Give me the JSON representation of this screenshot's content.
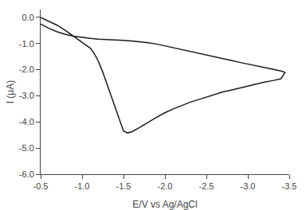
{
  "chart_data": {
    "type": "line",
    "xlabel": "E/V vs Ag/AgCl",
    "ylabel": "I (μA)",
    "xlim": [
      -0.5,
      -3.5
    ],
    "ylim": [
      -6.0,
      0.3
    ],
    "xticks": [
      -0.5,
      {
        "value": -1.0,
        "label": "-1.0"
      },
      -1.5,
      {
        "value": -2.0,
        "label": "-2.0"
      },
      -2.5,
      {
        "value": -3.0,
        "label": "-3.0"
      },
      -3.5
    ],
    "yticks": [
      {
        "value": 0.0,
        "label": "0.0"
      },
      {
        "value": -1.0,
        "label": "-1.0"
      },
      {
        "value": -2.0,
        "label": "-2.0"
      },
      {
        "value": -3.0,
        "label": "-3.0"
      },
      {
        "value": -4.0,
        "label": "-4.0"
      },
      {
        "value": -5.0,
        "label": "-5.0"
      },
      {
        "value": -6.0,
        "label": "-6.0"
      }
    ],
    "grid": false,
    "series": [
      {
        "color": "#1a1a1a",
        "x": [
          -0.5,
          -0.6,
          -0.7,
          -0.8,
          -0.9,
          -1.0,
          -1.05,
          -1.1,
          -1.15,
          -1.2,
          -1.25,
          -1.3,
          -1.35,
          -1.4,
          -1.45,
          -1.5,
          -1.55,
          -1.6,
          -1.7,
          -1.8,
          -1.9,
          -2.0,
          -2.1,
          -2.2,
          -2.3,
          -2.4,
          -2.5,
          -2.6,
          -2.7,
          -2.8,
          -2.9,
          -3.0,
          -3.1,
          -3.2,
          -3.3,
          -3.4,
          -3.45
        ],
        "values": [
          0.0,
          -0.15,
          -0.3,
          -0.5,
          -0.72,
          -0.95,
          -1.05,
          -1.18,
          -1.4,
          -1.7,
          -2.1,
          -2.55,
          -3.0,
          -3.5,
          -3.95,
          -4.35,
          -4.42,
          -4.38,
          -4.2,
          -4.0,
          -3.82,
          -3.65,
          -3.5,
          -3.38,
          -3.25,
          -3.15,
          -3.05,
          -2.95,
          -2.85,
          -2.78,
          -2.7,
          -2.62,
          -2.55,
          -2.48,
          -2.42,
          -2.35,
          -2.1
        ]
      },
      {
        "color": "#1a1a1a",
        "x": [
          -3.45,
          -3.4,
          -3.3,
          -3.2,
          -3.1,
          -3.0,
          -2.9,
          -2.8,
          -2.7,
          -2.6,
          -2.5,
          -2.4,
          -2.3,
          -2.2,
          -2.1,
          -2.0,
          -1.9,
          -1.8,
          -1.7,
          -1.6,
          -1.5,
          -1.4,
          -1.3,
          -1.2,
          -1.1,
          -1.0,
          -0.9,
          -0.8,
          -0.7,
          -0.6,
          -0.5
        ],
        "values": [
          -2.1,
          -2.05,
          -1.98,
          -1.92,
          -1.85,
          -1.78,
          -1.72,
          -1.65,
          -1.58,
          -1.52,
          -1.45,
          -1.38,
          -1.3,
          -1.22,
          -1.15,
          -1.08,
          -1.02,
          -0.97,
          -0.93,
          -0.9,
          -0.88,
          -0.87,
          -0.85,
          -0.83,
          -0.8,
          -0.76,
          -0.72,
          -0.65,
          -0.55,
          -0.42,
          -0.25
        ]
      }
    ]
  }
}
